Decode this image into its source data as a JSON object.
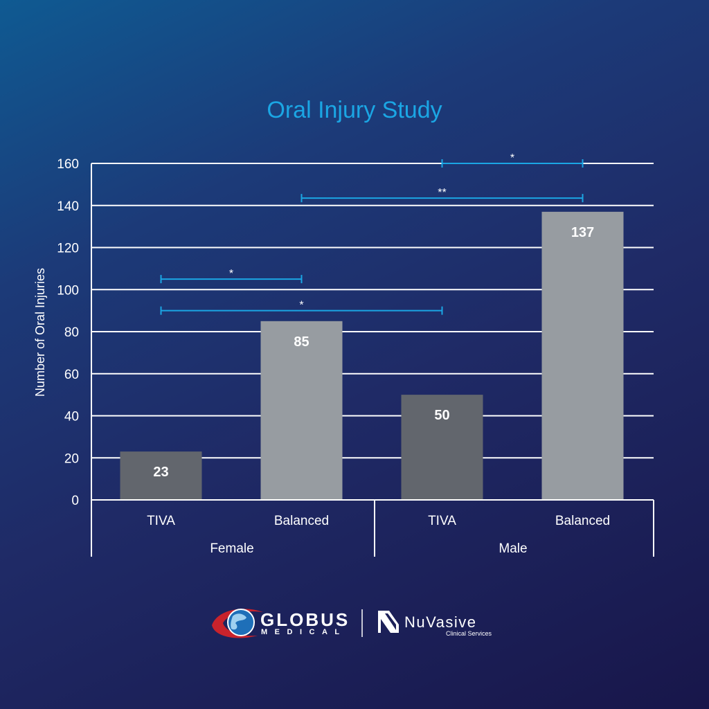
{
  "chart_data": {
    "type": "bar",
    "title": "Oral Injury Study",
    "ylabel": "Number of Oral Injuries",
    "ylim": [
      0,
      160
    ],
    "yticks": [
      0,
      20,
      40,
      60,
      80,
      100,
      120,
      140,
      160
    ],
    "groups": [
      {
        "name": "Female",
        "bars": [
          {
            "label": "TIVA",
            "value": 23
          },
          {
            "label": "Balanced",
            "value": 85
          }
        ]
      },
      {
        "name": "Male",
        "bars": [
          {
            "label": "TIVA",
            "value": 50
          },
          {
            "label": "Balanced",
            "value": 137
          }
        ]
      }
    ],
    "bar_data_labels": [
      "23",
      "85",
      "50",
      "137"
    ],
    "significance": [
      {
        "from": "Female TIVA",
        "to": "Female Balanced",
        "label": "*",
        "level": 105
      },
      {
        "from": "Female TIVA",
        "to": "Male TIVA",
        "label": "*",
        "level": 90
      },
      {
        "from": "Female Balanced",
        "to": "Male Balanced",
        "label": "**",
        "level": 143.5
      },
      {
        "from": "Male TIVA",
        "to": "Male Balanced",
        "label": "*",
        "level": 160
      }
    ],
    "grid": true,
    "colors": {
      "title": "#1ba6e4",
      "tiva_bar": "#62666d",
      "balanced_bar": "#979ca1",
      "significance": "#1ba6e4",
      "axis": "#ffffff"
    }
  },
  "logos": {
    "globus_line1": "GLOBUS",
    "globus_line2": "MEDICAL",
    "nuvasive_name": "NuVasive",
    "nuvasive_sub": "Clinical Services"
  }
}
